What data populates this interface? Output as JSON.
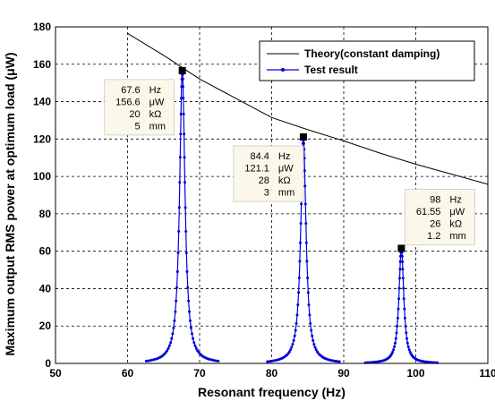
{
  "chart_data": {
    "type": "line",
    "xlabel": "Resonant frequency (Hz)",
    "ylabel": "Maximum output RMS power at optimum load (μW)",
    "xlim": [
      50,
      110
    ],
    "ylim": [
      0,
      180
    ],
    "xticks": [
      50,
      60,
      70,
      80,
      90,
      100,
      110
    ],
    "yticks": [
      0,
      20,
      40,
      60,
      80,
      100,
      120,
      140,
      160,
      180
    ],
    "grid": true,
    "legend_position": "top-right",
    "colors": {
      "theory": "#000000",
      "test": "#0000dd",
      "marker": "#000000",
      "annotation_bg": "#fbf8ea"
    },
    "series": [
      {
        "name": "Theory(constant damping)",
        "x": [
          60,
          65,
          70,
          75,
          80,
          85,
          90,
          95,
          100,
          105,
          110
        ],
        "y": [
          176.5,
          164.8,
          152.1,
          141.8,
          131.5,
          125.0,
          119.0,
          112.5,
          106.5,
          101.2,
          95.8
        ]
      },
      {
        "name": "Test result",
        "peaks": [
          {
            "f": 67.6,
            "p": 156.6,
            "width": 0.45,
            "range": [
              62,
              72
            ]
          },
          {
            "f": 84.4,
            "p": 121.1,
            "width": 0.45,
            "range": [
              79,
              89
            ]
          },
          {
            "f": 98.0,
            "p": 61.55,
            "width": 0.4,
            "range": [
              93,
              103
            ]
          }
        ]
      }
    ],
    "annotations": [
      {
        "x": 67.6,
        "y": 156.6,
        "lines": [
          [
            "67.6",
            "Hz"
          ],
          [
            "156.6",
            "μW"
          ],
          [
            "20",
            "kΩ"
          ],
          [
            "5",
            "mm"
          ]
        ],
        "box": "left"
      },
      {
        "x": 84.4,
        "y": 121.1,
        "lines": [
          [
            "84.4",
            "Hz"
          ],
          [
            "121.1",
            "μW"
          ],
          [
            "28",
            "kΩ"
          ],
          [
            "3",
            "mm"
          ]
        ],
        "box": "below"
      },
      {
        "x": 98.0,
        "y": 61.55,
        "lines": [
          [
            "98",
            "Hz"
          ],
          [
            "61.55",
            "μW"
          ],
          [
            "26",
            "kΩ"
          ],
          [
            "1.2",
            "mm"
          ]
        ],
        "box": "above-right"
      }
    ]
  }
}
